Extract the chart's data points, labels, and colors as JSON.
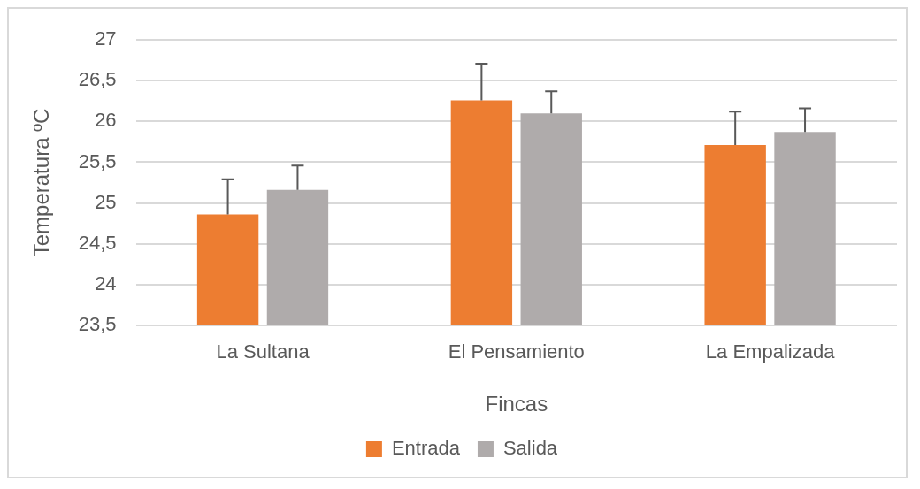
{
  "chart_data": {
    "type": "bar",
    "xlabel": "Fincas",
    "ylabel": "Temperatura ºC",
    "categories": [
      "La Sultana",
      "El Pensamiento",
      "La Empalizada"
    ],
    "series": [
      {
        "name": "Entrada",
        "color": "#ed7d31",
        "values": [
          24.86,
          26.26,
          25.71
        ],
        "errors": [
          [
            24.86,
            25.29
          ],
          [
            26.26,
            26.71
          ],
          [
            25.71,
            26.12
          ]
        ]
      },
      {
        "name": "Salida",
        "color": "#afabab",
        "values": [
          25.16,
          26.1,
          25.87
        ],
        "errors": [
          [
            25.16,
            25.46
          ],
          [
            26.1,
            26.37
          ],
          [
            25.87,
            26.16
          ]
        ]
      }
    ],
    "ylim": [
      23.5,
      27
    ],
    "yticks": [
      {
        "value": 23.5,
        "label": "23,5"
      },
      24,
      {
        "value": 24.5,
        "label": "24,5"
      },
      25,
      {
        "value": 25.5,
        "label": "25,5"
      },
      26,
      {
        "value": 26.5,
        "label": "26,5"
      },
      27
    ],
    "grid": "y",
    "legend": "bottom"
  }
}
